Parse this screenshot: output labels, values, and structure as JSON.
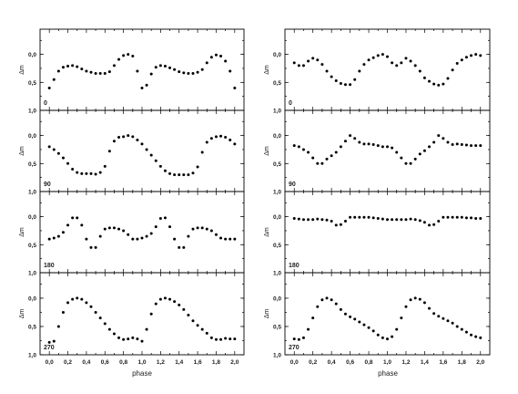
{
  "chart_data": [
    {
      "type": "scatter",
      "column": 0,
      "row": 0,
      "panel_label": "0",
      "ylabel": "Δm",
      "yticks": [
        "0,0",
        "0,5",
        "1,0"
      ],
      "ylim": [
        1.0,
        -0.45
      ],
      "x": [
        0.0,
        0.05,
        0.1,
        0.15,
        0.2,
        0.25,
        0.3,
        0.35,
        0.4,
        0.45,
        0.5,
        0.55,
        0.6,
        0.65,
        0.7,
        0.75,
        0.8,
        0.85,
        0.9,
        0.95,
        1.0,
        1.05,
        1.1,
        1.15,
        1.2,
        1.25,
        1.3,
        1.35,
        1.4,
        1.45,
        1.5,
        1.55,
        1.6,
        1.65,
        1.7,
        1.75,
        1.8,
        1.85,
        1.9,
        1.95,
        2.0
      ],
      "y": [
        0.6,
        0.45,
        0.3,
        0.23,
        0.21,
        0.2,
        0.22,
        0.26,
        0.3,
        0.32,
        0.34,
        0.34,
        0.34,
        0.31,
        0.2,
        0.09,
        0.02,
        0.0,
        0.03,
        0.3,
        0.6,
        0.55,
        0.35,
        0.23,
        0.2,
        0.21,
        0.24,
        0.27,
        0.31,
        0.33,
        0.34,
        0.34,
        0.32,
        0.27,
        0.15,
        0.05,
        0.01,
        0.03,
        0.12,
        0.3,
        0.6
      ]
    },
    {
      "type": "scatter",
      "column": 0,
      "row": 1,
      "panel_label": "90",
      "ylabel": "Δm",
      "yticks": [
        "0,0",
        "0,5",
        "1,0"
      ],
      "ylim": [
        1.0,
        -0.45
      ],
      "x": [
        0.0,
        0.05,
        0.1,
        0.15,
        0.2,
        0.25,
        0.3,
        0.35,
        0.4,
        0.45,
        0.5,
        0.55,
        0.6,
        0.65,
        0.7,
        0.75,
        0.8,
        0.85,
        0.9,
        0.95,
        1.0,
        1.05,
        1.1,
        1.15,
        1.2,
        1.25,
        1.3,
        1.35,
        1.4,
        1.45,
        1.5,
        1.55,
        1.6,
        1.65,
        1.7,
        1.75,
        1.8,
        1.85,
        1.9,
        1.95,
        2.0
      ],
      "y": [
        0.2,
        0.25,
        0.32,
        0.4,
        0.5,
        0.6,
        0.66,
        0.68,
        0.68,
        0.68,
        0.69,
        0.66,
        0.55,
        0.28,
        0.1,
        0.03,
        0.02,
        0.0,
        0.02,
        0.08,
        0.15,
        0.25,
        0.35,
        0.45,
        0.55,
        0.63,
        0.68,
        0.7,
        0.7,
        0.7,
        0.7,
        0.67,
        0.56,
        0.3,
        0.12,
        0.05,
        0.02,
        0.01,
        0.03,
        0.08,
        0.15
      ]
    },
    {
      "type": "scatter",
      "column": 0,
      "row": 2,
      "panel_label": "180",
      "ylabel": "Δm",
      "yticks": [
        "0,0",
        "0,5",
        "1,0"
      ],
      "ylim": [
        1.0,
        -0.45
      ],
      "x": [
        0.0,
        0.05,
        0.1,
        0.15,
        0.2,
        0.25,
        0.3,
        0.35,
        0.4,
        0.45,
        0.5,
        0.55,
        0.6,
        0.65,
        0.7,
        0.75,
        0.8,
        0.85,
        0.9,
        0.95,
        1.0,
        1.05,
        1.1,
        1.15,
        1.2,
        1.25,
        1.3,
        1.35,
        1.4,
        1.45,
        1.5,
        1.55,
        1.6,
        1.65,
        1.7,
        1.75,
        1.8,
        1.85,
        1.9,
        1.95,
        2.0
      ],
      "y": [
        0.4,
        0.38,
        0.35,
        0.28,
        0.15,
        0.02,
        0.02,
        0.15,
        0.4,
        0.55,
        0.55,
        0.35,
        0.22,
        0.2,
        0.2,
        0.22,
        0.25,
        0.32,
        0.4,
        0.4,
        0.38,
        0.35,
        0.3,
        0.18,
        0.03,
        0.02,
        0.18,
        0.4,
        0.55,
        0.55,
        0.35,
        0.22,
        0.2,
        0.2,
        0.22,
        0.25,
        0.32,
        0.38,
        0.4,
        0.4,
        0.4
      ]
    },
    {
      "type": "scatter",
      "column": 0,
      "row": 3,
      "panel_label": "270",
      "ylabel": "Δm",
      "yticks": [
        "0,0",
        "0,5",
        "1,0"
      ],
      "ylim": [
        1.0,
        -0.45
      ],
      "x": [
        0.0,
        0.05,
        0.1,
        0.15,
        0.2,
        0.25,
        0.3,
        0.35,
        0.4,
        0.45,
        0.5,
        0.55,
        0.6,
        0.65,
        0.7,
        0.75,
        0.8,
        0.85,
        0.9,
        0.95,
        1.0,
        1.05,
        1.1,
        1.15,
        1.2,
        1.25,
        1.3,
        1.35,
        1.4,
        1.45,
        1.5,
        1.55,
        1.6,
        1.65,
        1.7,
        1.75,
        1.8,
        1.85,
        1.9,
        1.95,
        2.0
      ],
      "y": [
        0.78,
        0.76,
        0.5,
        0.25,
        0.08,
        0.02,
        0.0,
        0.02,
        0.08,
        0.15,
        0.25,
        0.35,
        0.45,
        0.55,
        0.63,
        0.7,
        0.73,
        0.72,
        0.7,
        0.72,
        0.76,
        0.55,
        0.28,
        0.1,
        0.02,
        0.0,
        0.02,
        0.06,
        0.12,
        0.2,
        0.3,
        0.4,
        0.48,
        0.55,
        0.62,
        0.7,
        0.73,
        0.73,
        0.71,
        0.72,
        0.72
      ]
    },
    {
      "type": "scatter",
      "column": 1,
      "row": 0,
      "panel_label": "0",
      "ylabel": "Δm",
      "yticks": [
        "0,0",
        "0,5",
        "1,0"
      ],
      "ylim": [
        1.0,
        -0.45
      ],
      "x": [
        0.0,
        0.05,
        0.1,
        0.15,
        0.2,
        0.25,
        0.3,
        0.35,
        0.4,
        0.45,
        0.5,
        0.55,
        0.6,
        0.65,
        0.7,
        0.75,
        0.8,
        0.85,
        0.9,
        0.95,
        1.0,
        1.05,
        1.1,
        1.15,
        1.2,
        1.25,
        1.3,
        1.35,
        1.4,
        1.45,
        1.5,
        1.55,
        1.6,
        1.65,
        1.7,
        1.75,
        1.8,
        1.85,
        1.9,
        1.95,
        2.0
      ],
      "y": [
        0.15,
        0.2,
        0.2,
        0.12,
        0.07,
        0.1,
        0.18,
        0.3,
        0.4,
        0.47,
        0.52,
        0.54,
        0.54,
        0.45,
        0.3,
        0.18,
        0.1,
        0.06,
        0.02,
        0.0,
        0.04,
        0.15,
        0.2,
        0.15,
        0.07,
        0.12,
        0.2,
        0.3,
        0.42,
        0.48,
        0.53,
        0.55,
        0.53,
        0.43,
        0.28,
        0.16,
        0.1,
        0.05,
        0.02,
        0.0,
        0.02
      ]
    },
    {
      "type": "scatter",
      "column": 1,
      "row": 1,
      "panel_label": "90",
      "ylabel": "Δm",
      "yticks": [
        "0,0",
        "0,5",
        "1,0"
      ],
      "ylim": [
        1.0,
        -0.45
      ],
      "x": [
        0.0,
        0.05,
        0.1,
        0.15,
        0.2,
        0.25,
        0.3,
        0.35,
        0.4,
        0.45,
        0.5,
        0.55,
        0.6,
        0.65,
        0.7,
        0.75,
        0.8,
        0.85,
        0.9,
        0.95,
        1.0,
        1.05,
        1.1,
        1.15,
        1.2,
        1.25,
        1.3,
        1.35,
        1.4,
        1.45,
        1.5,
        1.55,
        1.6,
        1.65,
        1.7,
        1.75,
        1.8,
        1.85,
        1.9,
        1.95,
        2.0
      ],
      "y": [
        0.18,
        0.2,
        0.25,
        0.3,
        0.4,
        0.5,
        0.5,
        0.42,
        0.36,
        0.3,
        0.2,
        0.1,
        0.0,
        0.05,
        0.12,
        0.15,
        0.15,
        0.16,
        0.18,
        0.2,
        0.2,
        0.22,
        0.3,
        0.4,
        0.5,
        0.5,
        0.42,
        0.33,
        0.27,
        0.2,
        0.12,
        0.0,
        0.05,
        0.12,
        0.16,
        0.15,
        0.16,
        0.17,
        0.18,
        0.18,
        0.18
      ]
    },
    {
      "type": "scatter",
      "column": 1,
      "row": 2,
      "panel_label": "180",
      "ylabel": "Δm",
      "yticks": [
        "0,0",
        "0,5",
        "1,0"
      ],
      "ylim": [
        1.0,
        -0.45
      ],
      "x": [
        0.0,
        0.05,
        0.1,
        0.15,
        0.2,
        0.25,
        0.3,
        0.35,
        0.4,
        0.45,
        0.5,
        0.55,
        0.6,
        0.65,
        0.7,
        0.75,
        0.8,
        0.85,
        0.9,
        0.95,
        1.0,
        1.05,
        1.1,
        1.15,
        1.2,
        1.25,
        1.3,
        1.35,
        1.4,
        1.45,
        1.5,
        1.55,
        1.6,
        1.65,
        1.7,
        1.75,
        1.8,
        1.85,
        1.9,
        1.95,
        2.0
      ],
      "y": [
        0.03,
        0.04,
        0.05,
        0.05,
        0.05,
        0.04,
        0.05,
        0.06,
        0.08,
        0.15,
        0.14,
        0.08,
        0.01,
        0.01,
        0.01,
        0.01,
        0.01,
        0.02,
        0.03,
        0.04,
        0.05,
        0.05,
        0.05,
        0.05,
        0.05,
        0.04,
        0.05,
        0.07,
        0.1,
        0.15,
        0.14,
        0.08,
        0.01,
        0.01,
        0.01,
        0.01,
        0.01,
        0.02,
        0.02,
        0.03,
        0.03
      ]
    },
    {
      "type": "scatter",
      "column": 1,
      "row": 3,
      "panel_label": "270",
      "ylabel": "Δm",
      "yticks": [
        "0,0",
        "0,5",
        "1,0"
      ],
      "ylim": [
        1.0,
        -0.45
      ],
      "x": [
        0.0,
        0.05,
        0.1,
        0.15,
        0.2,
        0.25,
        0.3,
        0.35,
        0.4,
        0.45,
        0.5,
        0.55,
        0.6,
        0.65,
        0.7,
        0.75,
        0.8,
        0.85,
        0.9,
        0.95,
        1.0,
        1.05,
        1.1,
        1.15,
        1.2,
        1.25,
        1.3,
        1.35,
        1.4,
        1.45,
        1.5,
        1.55,
        1.6,
        1.65,
        1.7,
        1.75,
        1.8,
        1.85,
        1.9,
        1.95,
        2.0
      ],
      "y": [
        0.72,
        0.73,
        0.7,
        0.55,
        0.35,
        0.15,
        0.03,
        0.0,
        0.03,
        0.1,
        0.2,
        0.28,
        0.33,
        0.37,
        0.42,
        0.47,
        0.52,
        0.58,
        0.65,
        0.7,
        0.72,
        0.68,
        0.55,
        0.35,
        0.15,
        0.03,
        0.0,
        0.02,
        0.08,
        0.18,
        0.27,
        0.32,
        0.36,
        0.4,
        0.44,
        0.5,
        0.55,
        0.6,
        0.65,
        0.68,
        0.7
      ]
    }
  ],
  "axes": {
    "xlabel": "phase",
    "xticks": [
      "0,0",
      "0,2",
      "0,4",
      "0,6",
      "0,8",
      "1,0",
      "1,2",
      "1,4",
      "1,6",
      "1,8",
      "2,0"
    ],
    "xlim": [
      -0.1,
      2.1
    ]
  }
}
